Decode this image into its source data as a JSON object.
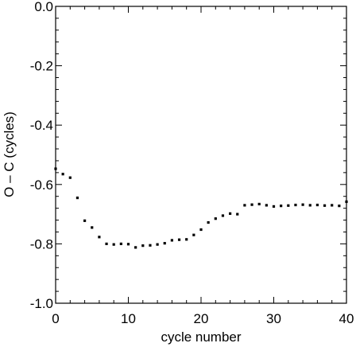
{
  "chart_data": {
    "type": "scatter",
    "title": "",
    "xlabel": "cycle number",
    "ylabel": "O – C (cycles)",
    "xlim": [
      0,
      40
    ],
    "ylim": [
      -1.0,
      0.0
    ],
    "x_ticks": [
      0,
      10,
      20,
      30,
      40
    ],
    "x_tick_labels": [
      "0",
      "10",
      "20",
      "30",
      "40"
    ],
    "y_ticks": [
      0.0,
      -0.2,
      -0.4,
      -0.6,
      -0.8,
      -1.0
    ],
    "y_tick_labels": [
      "0.0",
      "-0.2",
      "-0.4",
      "-0.6",
      "-0.8",
      "-1.0"
    ],
    "grid": false,
    "marker_color": "#000000",
    "series": [
      {
        "points": [
          [
            0,
            -0.547
          ],
          [
            1,
            -0.565
          ],
          [
            2,
            -0.577
          ],
          [
            3,
            -0.645
          ],
          [
            4,
            -0.722
          ],
          [
            5,
            -0.745
          ],
          [
            6,
            -0.777
          ],
          [
            7,
            -0.8
          ],
          [
            8,
            -0.802
          ],
          [
            9,
            -0.8
          ],
          [
            10,
            -0.801
          ],
          [
            11,
            -0.812
          ],
          [
            12,
            -0.806
          ],
          [
            13,
            -0.805
          ],
          [
            14,
            -0.802
          ],
          [
            15,
            -0.798
          ],
          [
            16,
            -0.788
          ],
          [
            17,
            -0.786
          ],
          [
            18,
            -0.785
          ],
          [
            19,
            -0.77
          ],
          [
            20,
            -0.752
          ],
          [
            21,
            -0.728
          ],
          [
            22,
            -0.715
          ],
          [
            23,
            -0.705
          ],
          [
            24,
            -0.698
          ],
          [
            25,
            -0.7
          ],
          [
            26,
            -0.67
          ],
          [
            27,
            -0.668
          ],
          [
            28,
            -0.666
          ],
          [
            29,
            -0.67
          ],
          [
            30,
            -0.674
          ],
          [
            31,
            -0.672
          ],
          [
            32,
            -0.671
          ],
          [
            33,
            -0.669
          ],
          [
            34,
            -0.668
          ],
          [
            35,
            -0.67
          ],
          [
            36,
            -0.669
          ],
          [
            37,
            -0.671
          ],
          [
            38,
            -0.67
          ],
          [
            39,
            -0.672
          ],
          [
            40,
            -0.658
          ]
        ]
      }
    ]
  }
}
